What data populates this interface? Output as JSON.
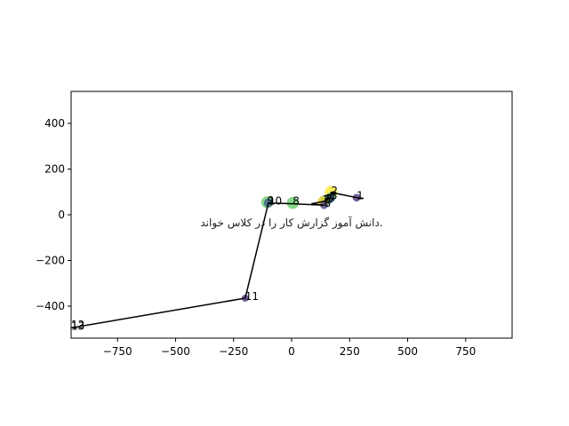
{
  "chart_data": {
    "type": "scatter",
    "title": "",
    "xlabel": "",
    "ylabel": "",
    "xlim": [
      -950,
      950
    ],
    "ylim": [
      -540,
      540
    ],
    "xticks": [
      -750,
      -500,
      -250,
      0,
      250,
      500,
      750
    ],
    "yticks": [
      -400,
      -200,
      0,
      200,
      400
    ],
    "xtick_labels": [
      "−750",
      "−500",
      "−250",
      "0",
      "250",
      "500",
      "750"
    ],
    "ytick_labels": [
      "−400",
      "−200",
      "0",
      "200",
      "400"
    ],
    "grid": false,
    "legend": null,
    "colormap": "viridis",
    "points": [
      {
        "label": "1",
        "x": 280,
        "y": 75,
        "size": 30,
        "color": "#482878"
      },
      {
        "label": "2",
        "x": 170,
        "y": 98,
        "size": 80,
        "color": "#fde725"
      },
      {
        "label": "3",
        "x": 168,
        "y": 75,
        "size": 45,
        "color": "#21918c"
      },
      {
        "label": "4",
        "x": 160,
        "y": 70,
        "size": 50,
        "color": "#3b528b"
      },
      {
        "label": "5",
        "x": 150,
        "y": 62,
        "size": 40,
        "color": "#5ec962"
      },
      {
        "label": "6",
        "x": 140,
        "y": 60,
        "size": 60,
        "color": "#31688e"
      },
      {
        "label": "7",
        "x": 135,
        "y": 58,
        "size": 55,
        "color": "#fde725"
      },
      {
        "label": "8",
        "x": 140,
        "y": 42,
        "size": 30,
        "color": "#443983"
      },
      {
        "label": "8",
        "x": 5,
        "y": 52,
        "size": 70,
        "color": "#5ec962"
      },
      {
        "label": "9",
        "x": -105,
        "y": 55,
        "size": 70,
        "color": "#5ec962"
      },
      {
        "label": "10",
        "x": -100,
        "y": 52,
        "size": 40,
        "color": "#3b528b"
      },
      {
        "label": "11",
        "x": -200,
        "y": -365,
        "size": 25,
        "color": "#482878"
      },
      {
        "label": "12",
        "x": -950,
        "y": -490,
        "size": 0,
        "color": "#440154"
      },
      {
        "label": "13",
        "x": -950,
        "y": -495,
        "size": 0,
        "color": "#440154"
      }
    ],
    "path": [
      {
        "x": 310,
        "y": 72
      },
      {
        "x": 280,
        "y": 75
      },
      {
        "x": 170,
        "y": 98
      },
      {
        "x": 168,
        "y": 75
      },
      {
        "x": 150,
        "y": 62
      },
      {
        "x": 140,
        "y": 60
      },
      {
        "x": 135,
        "y": 58
      },
      {
        "x": 85,
        "y": 48
      },
      {
        "x": 140,
        "y": 42
      },
      {
        "x": 5,
        "y": 48
      },
      {
        "x": -100,
        "y": 52
      },
      {
        "x": -200,
        "y": -365
      },
      {
        "x": -950,
        "y": -495
      }
    ],
    "annotation": {
      "text": "دانش آموز گزارش کار را در کلاس خواند.",
      "x": 0,
      "y": -30
    }
  }
}
